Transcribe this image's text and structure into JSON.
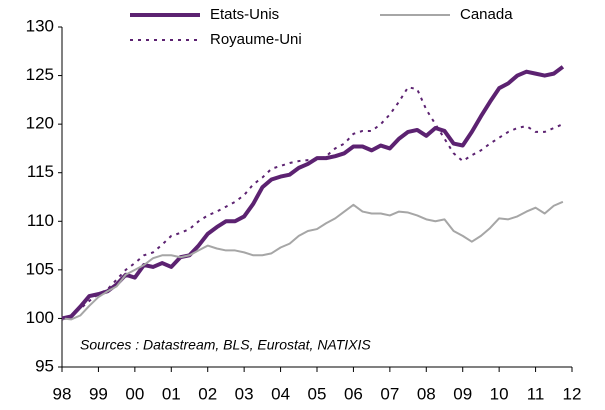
{
  "chart_data": {
    "type": "line",
    "annotation": "Sources : Datastream, BLS, Eurostat, NATIXIS",
    "x": [
      1998,
      1998.25,
      1998.5,
      1998.75,
      1999,
      1999.25,
      1999.5,
      1999.75,
      2000,
      2000.25,
      2000.5,
      2000.75,
      2001,
      2001.25,
      2001.5,
      2001.75,
      2002,
      2002.25,
      2002.5,
      2002.75,
      2003,
      2003.25,
      2003.5,
      2003.75,
      2004,
      2004.25,
      2004.5,
      2004.75,
      2005,
      2005.25,
      2005.5,
      2005.75,
      2006,
      2006.25,
      2006.5,
      2006.75,
      2007,
      2007.25,
      2007.5,
      2007.75,
      2008,
      2008.25,
      2008.5,
      2008.75,
      2009,
      2009.25,
      2009.5,
      2009.75,
      2010,
      2010.25,
      2010.5,
      2010.75,
      2011,
      2011.25,
      2011.5,
      2011.75
    ],
    "series": [
      {
        "name": "Etats-Unis",
        "color": "#5c2271",
        "line_style": "solid",
        "width": 4,
        "values": [
          100,
          100.2,
          101.2,
          102.3,
          102.5,
          102.8,
          103.5,
          104.5,
          104.2,
          105.5,
          105.3,
          105.7,
          105.3,
          106.3,
          106.5,
          107.5,
          108.7,
          109.4,
          110,
          110,
          110.5,
          111.8,
          113.5,
          114.3,
          114.6,
          114.8,
          115.5,
          115.9,
          116.5,
          116.5,
          116.7,
          117,
          117.7,
          117.7,
          117.3,
          117.8,
          117.5,
          118.5,
          119.2,
          119.4,
          118.8,
          119.6,
          119.3,
          118,
          117.8,
          119.2,
          120.8,
          122.3,
          123.7,
          124.2,
          125,
          125.4,
          125.2,
          125,
          125.2,
          125.9
        ]
      },
      {
        "name": "Canada",
        "color": "#a6a6a6",
        "line_style": "solid",
        "width": 2,
        "values": [
          100,
          99.9,
          100.3,
          101.3,
          102.2,
          102.8,
          103.3,
          104.5,
          105,
          105.5,
          106.2,
          106.5,
          106.5,
          106.3,
          106.5,
          107,
          107.5,
          107.2,
          107,
          107,
          106.8,
          106.5,
          106.5,
          106.7,
          107.3,
          107.7,
          108.5,
          109,
          109.2,
          109.8,
          110.3,
          111,
          111.7,
          111,
          110.8,
          110.8,
          110.6,
          111,
          110.9,
          110.6,
          110.2,
          110,
          110.2,
          109,
          108.5,
          107.9,
          108.5,
          109.3,
          110.3,
          110.2,
          110.5,
          111,
          111.4,
          110.8,
          111.6,
          112
        ]
      },
      {
        "name": "Royaume-Uni",
        "color": "#5c2271",
        "line_style": "dotted",
        "width": 2,
        "values": [
          100,
          100.3,
          101,
          101.8,
          102.5,
          103,
          104,
          105,
          105.7,
          106.5,
          106.8,
          107.6,
          108.5,
          108.8,
          109.2,
          110,
          110.6,
          111,
          111.5,
          112,
          112.7,
          113.8,
          114.5,
          115.4,
          115.7,
          116,
          116.2,
          116.3,
          116.3,
          116.7,
          117.5,
          118,
          119,
          119.3,
          119.3,
          120,
          121,
          122.3,
          123.8,
          123.6,
          121.5,
          120,
          118.5,
          117,
          116.2,
          116.8,
          117.3,
          118,
          118.6,
          119.2,
          119.6,
          119.8,
          119.2,
          119.2,
          119.6,
          120
        ]
      }
    ],
    "xlim": [
      1998,
      2012
    ],
    "xticks": [
      {
        "value": 1998,
        "label": "98"
      },
      {
        "value": 1999,
        "label": "99"
      },
      {
        "value": 2000,
        "label": "00"
      },
      {
        "value": 2001,
        "label": "01"
      },
      {
        "value": 2002,
        "label": "02"
      },
      {
        "value": 2003,
        "label": "03"
      },
      {
        "value": 2004,
        "label": "04"
      },
      {
        "value": 2005,
        "label": "05"
      },
      {
        "value": 2006,
        "label": "06"
      },
      {
        "value": 2007,
        "label": "07"
      },
      {
        "value": 2008,
        "label": "08"
      },
      {
        "value": 2009,
        "label": "09"
      },
      {
        "value": 2010,
        "label": "10"
      },
      {
        "value": 2011,
        "label": "11"
      },
      {
        "value": 2012,
        "label": "12"
      }
    ],
    "ylim": [
      95,
      130
    ],
    "yticks": [
      95,
      100,
      105,
      110,
      115,
      120,
      125,
      130
    ],
    "grid": false
  }
}
